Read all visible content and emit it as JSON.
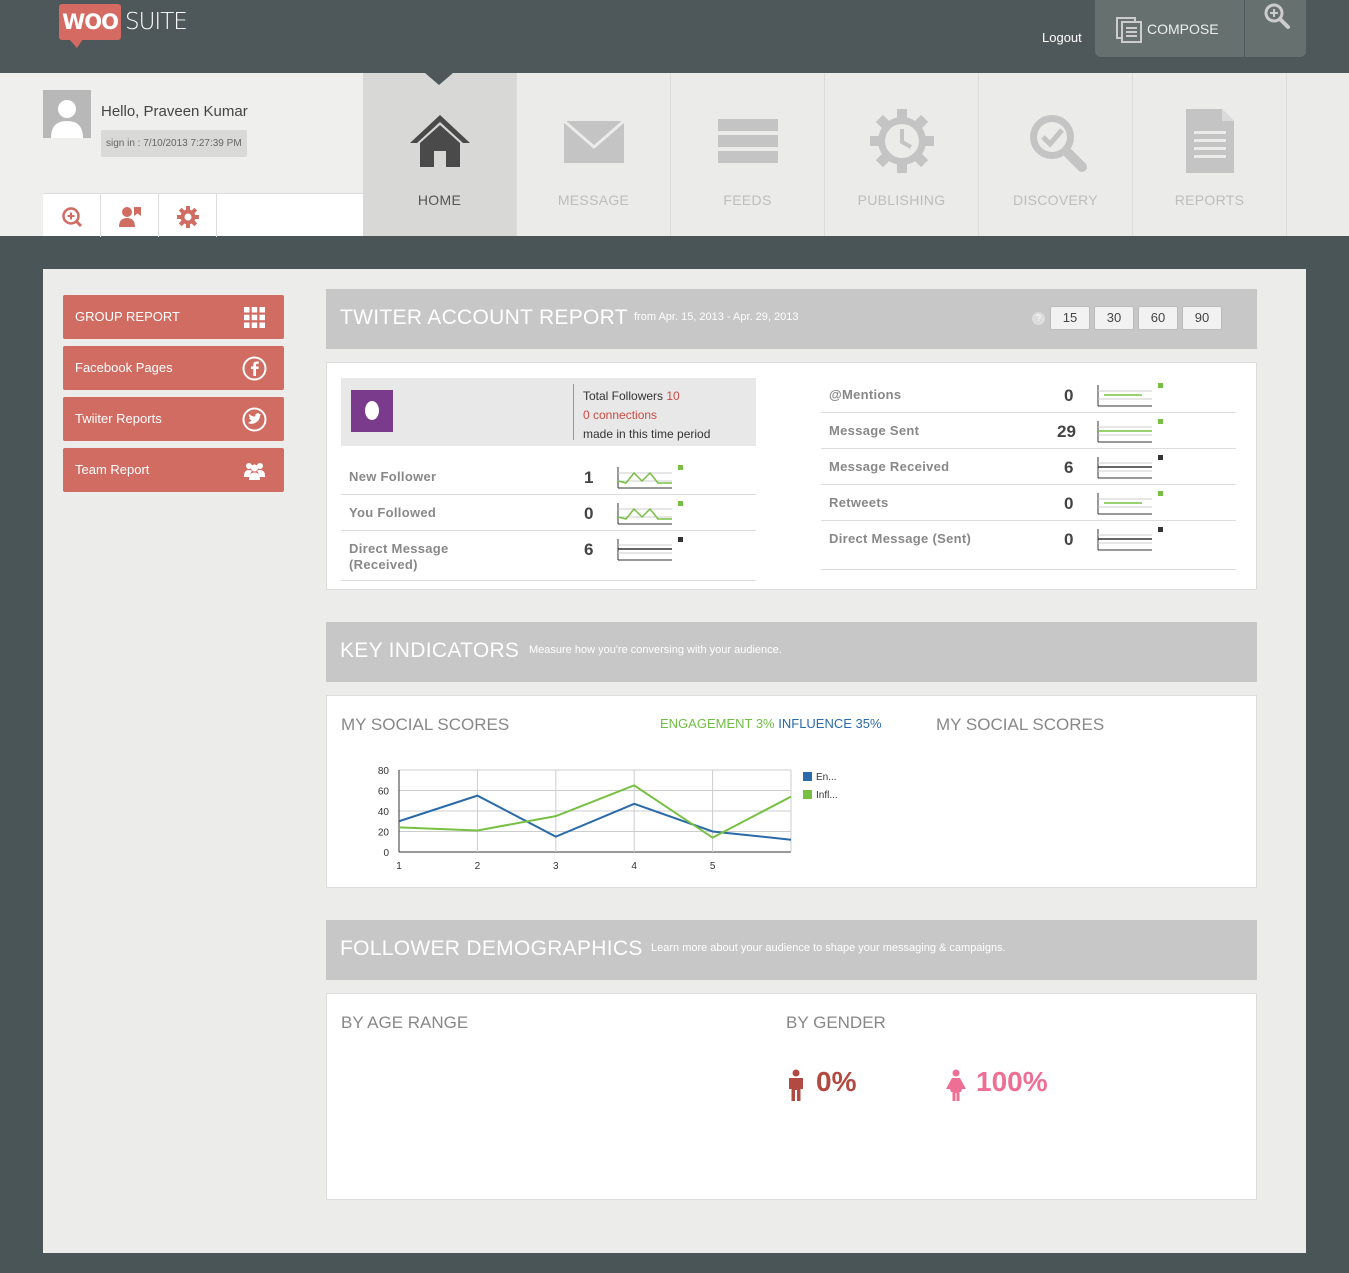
{
  "brand": {
    "woo": "WOO",
    "suite": "SUITE"
  },
  "header": {
    "logout": "Logout",
    "compose": "COMPOSE"
  },
  "user": {
    "greeting": "Hello, Praveen Kumar",
    "signin": "sign in : 7/10/2013 7:27:39 PM"
  },
  "nav": [
    {
      "label": "HOME",
      "icon": "home-icon",
      "active": true
    },
    {
      "label": "MESSAGE",
      "icon": "envelope-icon",
      "active": false
    },
    {
      "label": "FEEDS",
      "icon": "feeds-icon",
      "active": false
    },
    {
      "label": "PUBLISHING",
      "icon": "publishing-icon",
      "active": false
    },
    {
      "label": "DISCOVERY",
      "icon": "discovery-icon",
      "active": false
    },
    {
      "label": "REPORTS",
      "icon": "reports-icon",
      "active": false
    }
  ],
  "sidebar": [
    {
      "label": "GROUP REPORT",
      "icon": "grid-icon"
    },
    {
      "label": "Facebook Pages",
      "icon": "facebook-icon"
    },
    {
      "label": "Twiiter Reports",
      "icon": "twitter-icon"
    },
    {
      "label": "Team Report",
      "icon": "team-icon"
    }
  ],
  "report": {
    "title": "TWITER ACCOUNT REPORT",
    "range": "from Apr. 15, 2013 - Apr. 29, 2013",
    "help": "?",
    "ranges": [
      "15",
      "30",
      "60",
      "90"
    ],
    "total_followers_label": "Total Followers",
    "total_followers": "10",
    "connections": "0 connections",
    "period": "made in this time period",
    "left_stats": [
      {
        "label": "New Follower",
        "value": "1",
        "trend": "up"
      },
      {
        "label": "You Followed",
        "value": "0",
        "trend": "up"
      },
      {
        "label": "Direct Message (Received)",
        "value": "6",
        "trend": "flat"
      }
    ],
    "right_stats": [
      {
        "label": "@Mentions",
        "value": "0",
        "trend": "up"
      },
      {
        "label": "Message Sent",
        "value": "29",
        "trend": "up"
      },
      {
        "label": "Message Received",
        "value": "6",
        "trend": "flat"
      },
      {
        "label": "Retweets",
        "value": "0",
        "trend": "up"
      },
      {
        "label": "Direct Message (Sent)",
        "value": "0",
        "trend": "flat"
      }
    ]
  },
  "key_indicators": {
    "title": "KEY INDICATORS",
    "subtitle": "Measure how you're conversing with your audience.",
    "scores_title": "MY SOCIAL SCORES",
    "scores_title_2": "MY SOCIAL SCORES",
    "engagement": "ENGAGEMENT 3%",
    "influence": "INFLUENCE 35%"
  },
  "chart_data": {
    "type": "line",
    "x": [
      1,
      2,
      3,
      4,
      5,
      6
    ],
    "x_tick_labels": [
      "1",
      "2",
      "3",
      "4",
      "5"
    ],
    "ylim": [
      0,
      80
    ],
    "y_ticks": [
      0,
      20,
      40,
      60,
      80
    ],
    "series": [
      {
        "name": "En...",
        "color": "#2a6aa8",
        "values": [
          30,
          55,
          15,
          47,
          20,
          12
        ]
      },
      {
        "name": "Infl...",
        "color": "#77c043",
        "values": [
          24,
          21,
          35,
          65,
          14,
          54
        ]
      }
    ],
    "grid": true,
    "legend": "right"
  },
  "demographics": {
    "title": "FOLLOWER DEMOGRAPHICS",
    "subtitle": "Learn more about your audience to shape your messaging & campaigns.",
    "age_title": "BY AGE RANGE",
    "gender_title": "BY GENDER",
    "male": "0%",
    "female": "100%",
    "male_color": "#b34a41",
    "female_color": "#ee6f94"
  }
}
